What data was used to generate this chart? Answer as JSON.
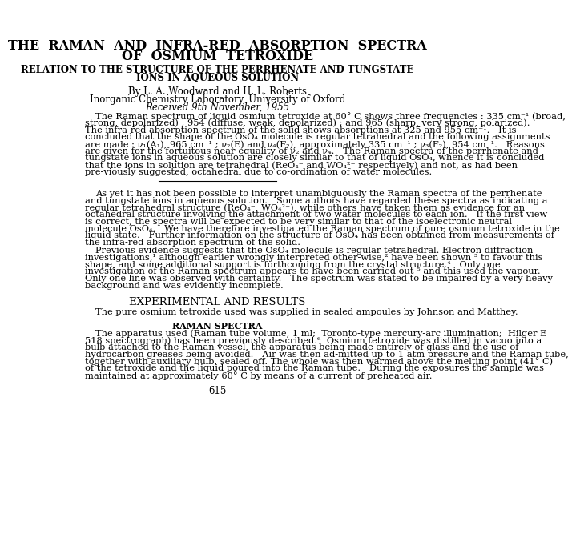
{
  "bg_color": "#ffffff",
  "title_line1": "THE  RAMAN  AND  INFRA-RED  ABSORPTION  SPECTRA",
  "title_line2": "OF  OSMIUM  TETROXIDE",
  "subtitle_line1": "RELATION TO THE STRUCTURE OF THE PERRHENATE AND TUNGSTATE",
  "subtitle_line2": "IONS IN AQUEOUS SOLUTION",
  "author_line": "By L. A. Woodward and H. L. Roberts",
  "affiliation": "Inorganic Chemistry Laboratory, University of Oxford",
  "received": "Received 9th November, 1955",
  "abstract": "The Raman spectrum of liquid osmium tetroxide at 60° C shows three frequencies : 335 cm⁻¹ (broad, strong, depolarized) ; 954 (diffuse, weak, depolarized) ; and 965 (sharp, very strong, polarized).   The infra-red absorption spectrum of the solid shows absorptions at 325 and 955 cm⁻¹.   It is concluded that the shape of the OsO₄ molecule is regular tetrahedral and the following assignments are made : ν₁(A₁), 965 cm⁻¹ ; ν₂(E) and ν₄(F₂), approximately 335 cm⁻¹ ; ν₃(F₂), 954 cm⁻¹.   Reasons are given for the fortuitous near-equality of ν₂ and ν₄.   The Raman spectra of the perrhenate and tungstate ions in aqueous solution are closely similar to that of liquid OsO₄, whence it is concluded that the ions in solution are tetrahedral (ReO₄⁻ and WO₄²⁻ respectively) and not, as had been pre-viously suggested, octahedral due to co-ordination of water molecules.",
  "para1": "As yet it has not been possible to interpret unambiguously the Raman spectra of the perrhenate and tungstate ions in aqueous solution.   Some authors have regarded these spectra as indicating a regular tetrahedral structure (ReO₄⁻, WO₄²⁻), while others have taken them as evidence for an octahedral structure involving the attachment of two water molecules to each ion.   If the first view is correct, the spectra will be expected to be very similar to that of the isoelectronic neutral molecule OsO₄.   We have therefore investigated the Raman spectrum of pure osmium tetroxide in the liquid state.   Further information on the structure of OsO₄ has been obtained from measurements of the infra-red absorption spectrum of the solid.",
  "para2": "Previous evidence suggests that the OsO₄ molecule is regular tetrahedral. Electron diffraction investigations,¹ although earlier wrongly interpreted other-wise,² have been shown ³ to favour this shape, and some additional support is forthcoming from the crystal structure.⁴   Only one investigation of the Raman spectrum appears to have been carried out ⁵ and this used the vapour.   Only one line was observed with certainty.   The spectrum was stated to be impaired by a very heavy background and was evidently incomplete.",
  "section_heading": "EXPERIMENTAL AND RESULTS",
  "subsection": "RAMAN SPECTRA",
  "exp_para1": "The pure osmium tetroxide used was supplied in sealed ampoules by Johnson and Matthey.",
  "exp_para2": "The apparatus used (Raman tube volume, 1 ml;  Toronto-type mercury-arc illumination;  Hilger E 518 spectrograph) has been previously described.⁶  Osmium tetroxide was distilled in vacuo into a bulb attached to the Raman vessel, the apparatus being made entirely of glass and the use of hydrocarbon greases being avoided.   Air was then ad-mitted up to 1 atm pressure and the Raman tube, together with auxiliary bulb, sealed off. The whole was then warmed above the melting point (41° C) of the tetroxide and the liquid poured into the Raman tube.   During the exposures the sample was maintained at approximately 60° C by means of a current of preheated air.",
  "page_number": "615"
}
